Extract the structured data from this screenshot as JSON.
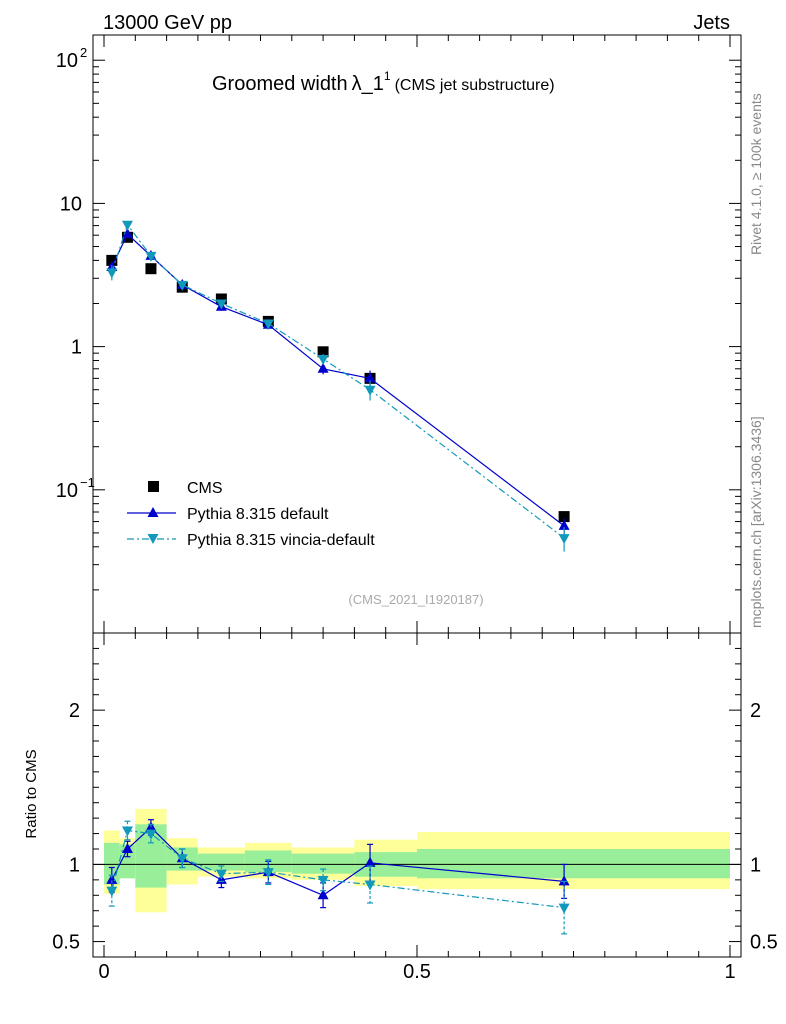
{
  "header": {
    "left": "13000 GeV pp",
    "right": "Jets"
  },
  "side_labels": {
    "top": "Rivet 4.1.0, ≥ 100k events",
    "bottom": "mcplots.cern.ch [arXiv:1306.3436]"
  },
  "chart_data": {
    "type": "line",
    "title": "Groomed width",
    "title_symbol": "λ_1",
    "title_superscript": "1",
    "title_suffix": "(CMS jet substructure)",
    "watermark": "(CMS_2021_I1920187)",
    "xlim": [
      0,
      1
    ],
    "x_ticks": [
      "0",
      "0.5",
      "1"
    ],
    "main_ylim": [
      0.01,
      150
    ],
    "main_yscale": "log",
    "main_y_ticks": [
      {
        "v": 100,
        "base": "10",
        "exp": "2"
      },
      {
        "v": 10,
        "base": "10",
        "exp": ""
      },
      {
        "v": 1,
        "base": "1",
        "exp": ""
      },
      {
        "v": 0.1,
        "base": "10",
        "exp": "−1"
      }
    ],
    "ratio_ylabel": "Ratio to CMS",
    "ratio_ylim": [
      0.4,
      2.5
    ],
    "ratio_y_ticks": [
      "0.5",
      "1",
      "2"
    ],
    "legend_position": "bottom-left",
    "bins": [
      {
        "lo": 0.0,
        "hi": 0.025
      },
      {
        "lo": 0.025,
        "hi": 0.05
      },
      {
        "lo": 0.05,
        "hi": 0.1
      },
      {
        "lo": 0.1,
        "hi": 0.15
      },
      {
        "lo": 0.15,
        "hi": 0.225
      },
      {
        "lo": 0.225,
        "hi": 0.3
      },
      {
        "lo": 0.3,
        "hi": 0.4
      },
      {
        "lo": 0.4,
        "hi": 0.5
      },
      {
        "lo": 0.5,
        "hi": 1.0
      }
    ],
    "x": [
      0.0125,
      0.0375,
      0.075,
      0.125,
      0.1875,
      0.2625,
      0.35,
      0.425,
      0.735
    ],
    "data_band_inner": [
      [
        0.87,
        1.14
      ],
      [
        0.91,
        1.13
      ],
      [
        0.85,
        1.26
      ],
      [
        0.96,
        1.11
      ],
      [
        0.96,
        1.07
      ],
      [
        0.95,
        1.09
      ],
      [
        0.94,
        1.07
      ],
      [
        0.92,
        1.08
      ],
      [
        0.91,
        1.1
      ]
    ],
    "data_band_outer": [
      [
        0.81,
        1.22
      ],
      [
        0.91,
        1.17
      ],
      [
        0.69,
        1.36
      ],
      [
        0.87,
        1.17
      ],
      [
        0.92,
        1.11
      ],
      [
        0.91,
        1.14
      ],
      [
        0.9,
        1.11
      ],
      [
        0.86,
        1.16
      ],
      [
        0.84,
        1.21
      ]
    ],
    "series": [
      {
        "name": "CMS",
        "style": "data",
        "color": "#000000",
        "marker": "square",
        "values": [
          4.0,
          5.8,
          3.5,
          2.6,
          2.15,
          1.5,
          0.92,
          0.6,
          0.065
        ]
      },
      {
        "name": "Pythia 8.315 default",
        "style": "solid",
        "color": "#0000cc",
        "marker": "triangle-up",
        "values": [
          3.6,
          6.1,
          4.3,
          2.7,
          1.9,
          1.42,
          0.7,
          0.6,
          0.056
        ],
        "errors": [
          0.3,
          0.3,
          0.3,
          0.15,
          0.12,
          0.1,
          0.06,
          0.08,
          0.007
        ],
        "ratio": [
          0.9,
          1.1,
          1.24,
          1.04,
          0.9,
          0.95,
          0.8,
          1.01,
          0.89
        ],
        "ratio_errors": [
          0.08,
          0.05,
          0.05,
          0.06,
          0.05,
          0.07,
          0.08,
          0.12,
          0.11
        ]
      },
      {
        "name": "Pythia 8.315 vincia-default",
        "style": "dashdot",
        "color": "#1199bb",
        "marker": "triangle-down",
        "values": [
          3.3,
          7.1,
          4.3,
          2.7,
          2.0,
          1.45,
          0.82,
          0.5,
          0.046
        ],
        "errors": [
          0.4,
          0.4,
          0.3,
          0.15,
          0.12,
          0.1,
          0.07,
          0.08,
          0.009
        ],
        "ratio": [
          0.83,
          1.22,
          1.2,
          1.04,
          0.94,
          0.95,
          0.9,
          0.87,
          0.72
        ],
        "ratio_errors": [
          0.1,
          0.06,
          0.06,
          0.06,
          0.05,
          0.08,
          0.07,
          0.12,
          0.17
        ]
      }
    ]
  }
}
